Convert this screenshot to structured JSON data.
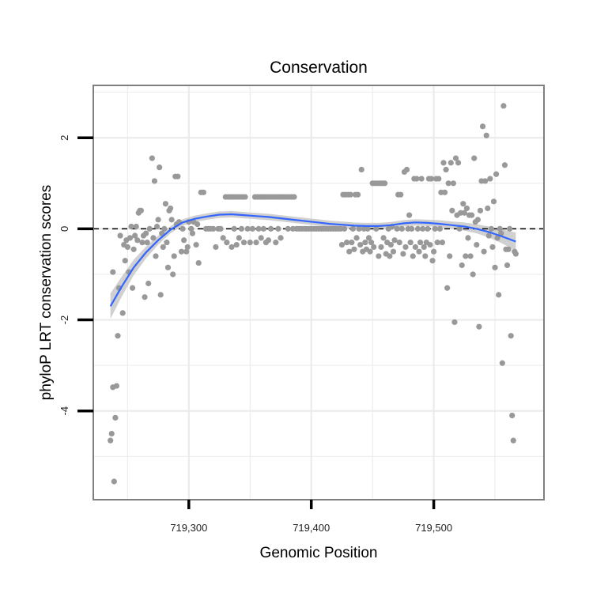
{
  "chart_data": {
    "type": "scatter",
    "title": "Conservation",
    "xlabel": "Genomic Position",
    "ylabel": "phyloP LRT conservation scores",
    "xlim": [
      719222,
      719590
    ],
    "ylim": [
      -5.95,
      3.15
    ],
    "x_ticks": [
      719300,
      719400,
      719500
    ],
    "x_tick_labels": [
      "719,300",
      "719,400",
      "719,500"
    ],
    "y_ticks": [
      -4,
      -2,
      0,
      2
    ],
    "y_tick_labels": [
      "-4",
      "-2",
      "0",
      "2"
    ],
    "reference_line": {
      "y": 0,
      "style": "dashed"
    },
    "colors": {
      "points": "#999999",
      "smooth": "#3366ff",
      "band": "#c8c8c8",
      "frame": "#7f7f7f",
      "grid": "#ebebeb"
    },
    "points": [
      [
        719236,
        -4.65
      ],
      [
        719237,
        -4.5
      ],
      [
        719238,
        -3.48
      ],
      [
        719239,
        -5.55
      ],
      [
        719240,
        -4.15
      ],
      [
        719241,
        -3.45
      ],
      [
        719242,
        -2.35
      ],
      [
        719238,
        -0.95
      ],
      [
        719243,
        -1.3
      ],
      [
        719244,
        -0.15
      ],
      [
        719246,
        -1.85
      ],
      [
        719247,
        -0.35
      ],
      [
        719248,
        -0.7
      ],
      [
        719249,
        -0.25
      ],
      [
        719250,
        -0.4
      ],
      [
        719251,
        -0.95
      ],
      [
        719252,
        -0.2
      ],
      [
        719253,
        0.05
      ],
      [
        719254,
        -1.3
      ],
      [
        719255,
        -0.45
      ],
      [
        719256,
        -0.15
      ],
      [
        719257,
        0.05
      ],
      [
        719258,
        -0.25
      ],
      [
        719259,
        0.35
      ],
      [
        719260,
        0.4
      ],
      [
        719261,
        0.4
      ],
      [
        719262,
        -0.3
      ],
      [
        719263,
        -0.15
      ],
      [
        719264,
        -1.5
      ],
      [
        719265,
        -0.1
      ],
      [
        719266,
        -0.3
      ],
      [
        719267,
        -1.2
      ],
      [
        719268,
        0.0
      ],
      [
        719270,
        1.55
      ],
      [
        719271,
        -0.2
      ],
      [
        719272,
        1.05
      ],
      [
        719273,
        -0.6
      ],
      [
        719274,
        0.05
      ],
      [
        719275,
        0.2
      ],
      [
        719276,
        1.35
      ],
      [
        719277,
        -1.45
      ],
      [
        719278,
        -0.1
      ],
      [
        719279,
        -0.4
      ],
      [
        719280,
        0.0
      ],
      [
        719281,
        0.55
      ],
      [
        719282,
        -0.3
      ],
      [
        719283,
        -0.85
      ],
      [
        719284,
        0.4
      ],
      [
        719285,
        0.45
      ],
      [
        719286,
        0.2
      ],
      [
        719287,
        -1.0
      ],
      [
        719288,
        -0.6
      ],
      [
        719289,
        1.15
      ],
      [
        719290,
        0.1
      ],
      [
        719291,
        1.15
      ],
      [
        719292,
        0.15
      ],
      [
        719294,
        -0.5
      ],
      [
        719295,
        0.0
      ],
      [
        719296,
        -0.25
      ],
      [
        719298,
        -0.5
      ],
      [
        719299,
        -0.4
      ],
      [
        719300,
        0.15
      ],
      [
        719302,
        0.0
      ],
      [
        719303,
        -0.1
      ],
      [
        719304,
        0.15
      ],
      [
        719306,
        -0.35
      ],
      [
        719307,
        0.1
      ],
      [
        719308,
        -0.75
      ],
      [
        719310,
        0.8
      ],
      [
        719312,
        0.8
      ],
      [
        719314,
        0.0
      ],
      [
        719316,
        0.0
      ],
      [
        719318,
        0.0
      ],
      [
        719320,
        0.0
      ],
      [
        719322,
        -0.4
      ],
      [
        719324,
        0.0
      ],
      [
        719326,
        0.0
      ],
      [
        719328,
        -0.2
      ],
      [
        719330,
        0.7
      ],
      [
        719331,
        -0.3
      ],
      [
        719332,
        0.7
      ],
      [
        719334,
        0.7
      ],
      [
        719335,
        -0.4
      ],
      [
        719336,
        0.7
      ],
      [
        719337,
        0.0
      ],
      [
        719338,
        0.7
      ],
      [
        719339,
        -0.35
      ],
      [
        719340,
        0.7
      ],
      [
        719341,
        -0.2
      ],
      [
        719342,
        0.7
      ],
      [
        719343,
        0.0
      ],
      [
        719344,
        0.7
      ],
      [
        719345,
        -0.3
      ],
      [
        719346,
        0.7
      ],
      [
        719348,
        0.0
      ],
      [
        719350,
        -0.3
      ],
      [
        719352,
        0.0
      ],
      [
        719354,
        0.7
      ],
      [
        719355,
        -0.3
      ],
      [
        719356,
        0.7
      ],
      [
        719357,
        0.0
      ],
      [
        719358,
        0.7
      ],
      [
        719359,
        -0.2
      ],
      [
        719360,
        0.7
      ],
      [
        719361,
        0.0
      ],
      [
        719362,
        0.7
      ],
      [
        719363,
        -0.3
      ],
      [
        719364,
        0.7
      ],
      [
        719365,
        -0.25
      ],
      [
        719366,
        0.7
      ],
      [
        719367,
        0.0
      ],
      [
        719368,
        0.7
      ],
      [
        719370,
        0.7
      ],
      [
        719371,
        -0.3
      ],
      [
        719372,
        0.7
      ],
      [
        719373,
        0.0
      ],
      [
        719374,
        0.7
      ],
      [
        719375,
        -0.2
      ],
      [
        719376,
        0.7
      ],
      [
        719378,
        0.7
      ],
      [
        719380,
        0.7
      ],
      [
        719381,
        0.0
      ],
      [
        719382,
        0.7
      ],
      [
        719384,
        0.7
      ],
      [
        719385,
        0.0
      ],
      [
        719386,
        0.7
      ],
      [
        719388,
        0.0
      ],
      [
        719390,
        0.0
      ],
      [
        719392,
        0.0
      ],
      [
        719394,
        0.0
      ],
      [
        719396,
        0.0
      ],
      [
        719398,
        0.0
      ],
      [
        719400,
        0.0
      ],
      [
        719402,
        0.0
      ],
      [
        719404,
        0.0
      ],
      [
        719406,
        0.0
      ],
      [
        719408,
        0.0
      ],
      [
        719410,
        0.0
      ],
      [
        719412,
        0.0
      ],
      [
        719414,
        0.0
      ],
      [
        719416,
        0.0
      ],
      [
        719418,
        0.0
      ],
      [
        719420,
        0.0
      ],
      [
        719422,
        0.0
      ],
      [
        719424,
        0.0
      ],
      [
        719425,
        -0.35
      ],
      [
        719426,
        0.75
      ],
      [
        719427,
        0.0
      ],
      [
        719428,
        0.75
      ],
      [
        719429,
        -0.3
      ],
      [
        719430,
        0.75
      ],
      [
        719431,
        -0.5
      ],
      [
        719432,
        0.75
      ],
      [
        719433,
        -0.3
      ],
      [
        719434,
        0.0
      ],
      [
        719435,
        -0.45
      ],
      [
        719436,
        0.75
      ],
      [
        719437,
        -0.2
      ],
      [
        719438,
        0.75
      ],
      [
        719439,
        0.0
      ],
      [
        719440,
        -0.35
      ],
      [
        719441,
        1.3
      ],
      [
        719442,
        -0.5
      ],
      [
        719443,
        0.0
      ],
      [
        719444,
        -0.3
      ],
      [
        719445,
        -0.45
      ],
      [
        719446,
        0.0
      ],
      [
        719447,
        -0.2
      ],
      [
        719448,
        -0.5
      ],
      [
        719449,
        -0.3
      ],
      [
        719450,
        1.0
      ],
      [
        719451,
        -0.4
      ],
      [
        719452,
        1.0
      ],
      [
        719453,
        0.0
      ],
      [
        719454,
        1.0
      ],
      [
        719455,
        -0.6
      ],
      [
        719456,
        1.0
      ],
      [
        719457,
        -0.4
      ],
      [
        719458,
        1.0
      ],
      [
        719459,
        -0.2
      ],
      [
        719460,
        1.0
      ],
      [
        719461,
        -0.55
      ],
      [
        719462,
        -0.3
      ],
      [
        719463,
        0.0
      ],
      [
        719464,
        -0.6
      ],
      [
        719465,
        -0.35
      ],
      [
        719466,
        0.05
      ],
      [
        719467,
        -0.5
      ],
      [
        719468,
        -0.25
      ],
      [
        719470,
        0.0
      ],
      [
        719471,
        0.75
      ],
      [
        719472,
        -0.3
      ],
      [
        719473,
        0.75
      ],
      [
        719474,
        0.0
      ],
      [
        719475,
        -0.55
      ],
      [
        719476,
        1.25
      ],
      [
        719477,
        -0.4
      ],
      [
        719478,
        1.3
      ],
      [
        719479,
        0.0
      ],
      [
        719480,
        0.3
      ],
      [
        719481,
        -0.3
      ],
      [
        719482,
        0.0
      ],
      [
        719483,
        -0.6
      ],
      [
        719484,
        1.1
      ],
      [
        719485,
        -0.4
      ],
      [
        719486,
        1.1
      ],
      [
        719487,
        0.0
      ],
      [
        719488,
        -0.5
      ],
      [
        719489,
        -0.3
      ],
      [
        719490,
        1.1
      ],
      [
        719491,
        0.0
      ],
      [
        719492,
        -0.4
      ],
      [
        719493,
        -0.6
      ],
      [
        719494,
        -0.3
      ],
      [
        719495,
        0.0
      ],
      [
        719496,
        1.1
      ],
      [
        719497,
        -0.35
      ],
      [
        719498,
        1.1
      ],
      [
        719499,
        -0.7
      ],
      [
        719500,
        -0.5
      ],
      [
        719501,
        0.0
      ],
      [
        719502,
        1.1
      ],
      [
        719503,
        -0.3
      ],
      [
        719504,
        1.1
      ],
      [
        719505,
        0.0
      ],
      [
        719506,
        0.8
      ],
      [
        719507,
        -0.3
      ],
      [
        719508,
        1.45
      ],
      [
        719509,
        0.8
      ],
      [
        719510,
        1.3
      ],
      [
        719511,
        -1.3
      ],
      [
        719512,
        1.0
      ],
      [
        719513,
        -0.6
      ],
      [
        719514,
        1.45
      ],
      [
        719515,
        0.4
      ],
      [
        719516,
        1.0
      ],
      [
        719517,
        -2.05
      ],
      [
        719518,
        1.55
      ],
      [
        719519,
        0.3
      ],
      [
        719520,
        1.45
      ],
      [
        719521,
        0.0
      ],
      [
        719522,
        0.35
      ],
      [
        719523,
        -0.8
      ],
      [
        719524,
        0.55
      ],
      [
        719525,
        0.35
      ],
      [
        719526,
        -0.6
      ],
      [
        719527,
        0.45
      ],
      [
        719528,
        -0.2
      ],
      [
        719529,
        0.3
      ],
      [
        719530,
        -0.6
      ],
      [
        719531,
        0.3
      ],
      [
        719532,
        -1.0
      ],
      [
        719533,
        1.55
      ],
      [
        719534,
        0.15
      ],
      [
        719535,
        -0.35
      ],
      [
        719536,
        0.2
      ],
      [
        719537,
        -2.15
      ],
      [
        719538,
        0.4
      ],
      [
        719539,
        1.05
      ],
      [
        719540,
        2.25
      ],
      [
        719541,
        -0.5
      ],
      [
        719542,
        1.05
      ],
      [
        719543,
        2.05
      ],
      [
        719544,
        0.45
      ],
      [
        719545,
        -0.15
      ],
      [
        719546,
        1.1
      ],
      [
        719547,
        0.0
      ],
      [
        719548,
        -0.4
      ],
      [
        719549,
        0.6
      ],
      [
        719550,
        -0.85
      ],
      [
        719551,
        1.2
      ],
      [
        719552,
        -0.2
      ],
      [
        719553,
        -1.45
      ],
      [
        719554,
        0.0
      ],
      [
        719555,
        -0.1
      ],
      [
        719556,
        -2.95
      ],
      [
        719557,
        2.7
      ],
      [
        719558,
        1.4
      ],
      [
        719559,
        -0.45
      ],
      [
        719560,
        -0.8
      ],
      [
        719561,
        -0.45
      ],
      [
        719562,
        0.0
      ],
      [
        719563,
        -2.35
      ],
      [
        719564,
        -4.1
      ],
      [
        719565,
        -4.65
      ],
      [
        719566,
        -0.5
      ],
      [
        719567,
        -0.55
      ]
    ],
    "smooth_curve": [
      [
        719236,
        -1.7
      ],
      [
        719245,
        -1.28
      ],
      [
        719255,
        -0.85
      ],
      [
        719265,
        -0.52
      ],
      [
        719275,
        -0.25
      ],
      [
        719285,
        -0.02
      ],
      [
        719295,
        0.14
      ],
      [
        719305,
        0.22
      ],
      [
        719315,
        0.27
      ],
      [
        719325,
        0.31
      ],
      [
        719335,
        0.32
      ],
      [
        719345,
        0.3
      ],
      [
        719355,
        0.28
      ],
      [
        719365,
        0.26
      ],
      [
        719375,
        0.23
      ],
      [
        719385,
        0.2
      ],
      [
        719395,
        0.17
      ],
      [
        719405,
        0.14
      ],
      [
        719415,
        0.11
      ],
      [
        719425,
        0.09
      ],
      [
        719435,
        0.07
      ],
      [
        719445,
        0.06
      ],
      [
        719455,
        0.06
      ],
      [
        719465,
        0.08
      ],
      [
        719475,
        0.12
      ],
      [
        719485,
        0.14
      ],
      [
        719495,
        0.13
      ],
      [
        719505,
        0.11
      ],
      [
        719515,
        0.08
      ],
      [
        719525,
        0.05
      ],
      [
        719535,
        0.0
      ],
      [
        719545,
        -0.07
      ],
      [
        719555,
        -0.16
      ],
      [
        719567,
        -0.28
      ]
    ],
    "band_halfwidth": [
      0.28,
      0.22,
      0.17,
      0.13,
      0.1,
      0.08,
      0.07,
      0.07,
      0.07,
      0.07,
      0.07,
      0.07,
      0.07,
      0.07,
      0.07,
      0.07,
      0.07,
      0.07,
      0.07,
      0.07,
      0.07,
      0.07,
      0.07,
      0.07,
      0.07,
      0.07,
      0.07,
      0.08,
      0.08,
      0.09,
      0.1,
      0.12,
      0.15,
      0.2
    ]
  }
}
